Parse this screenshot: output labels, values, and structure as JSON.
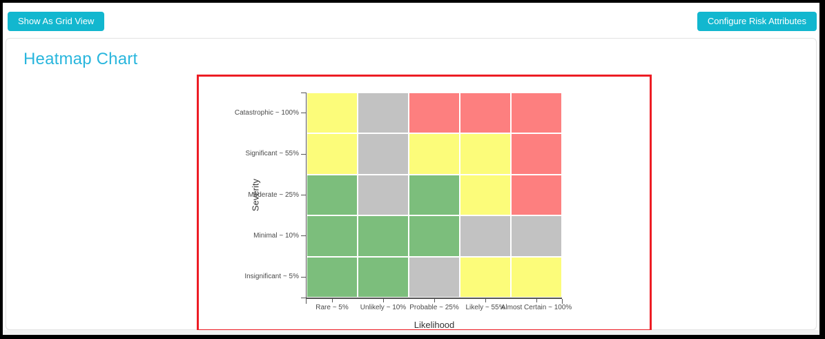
{
  "toolbar": {
    "show_as_grid_view": "Show As Grid View",
    "configure_risk_attributes": "Configure Risk Attributes"
  },
  "main": {
    "title": "Heatmap Chart"
  },
  "colors": {
    "accent_button": "#12b7cf",
    "title_text": "#29b6dd",
    "chart_outline": "#ed1c24",
    "axis_line": "#555555",
    "axis_text": "#4a4a4a",
    "cell_green": "#7cbe7c",
    "cell_yellow": "#fcfc7a",
    "cell_gray": "#c2c2c2",
    "cell_red": "#fd7f7f"
  },
  "chart_data": {
    "type": "heatmap",
    "title": "",
    "xlabel": "Likelihood",
    "ylabel": "Severity",
    "x_categories": [
      "Rare ~ 5%",
      "Unlikely ~ 10%",
      "Probable ~ 25%",
      "Likely ~ 55%",
      "Almost Certain ~ 100%"
    ],
    "y_categories": [
      "Catastrophic ~ 100%",
      "Significant ~ 55%",
      "Moderate ~ 25%",
      "Minimal ~ 10%",
      "Insignificant ~ 5%"
    ],
    "cells": [
      [
        "yellow",
        "gray",
        "red",
        "red",
        "red"
      ],
      [
        "yellow",
        "gray",
        "yellow",
        "yellow",
        "red"
      ],
      [
        "green",
        "gray",
        "green",
        "yellow",
        "red"
      ],
      [
        "green",
        "green",
        "green",
        "gray",
        "gray"
      ],
      [
        "green",
        "green",
        "gray",
        "yellow",
        "yellow"
      ]
    ],
    "legend_position": "none",
    "grid_separators": "white"
  }
}
